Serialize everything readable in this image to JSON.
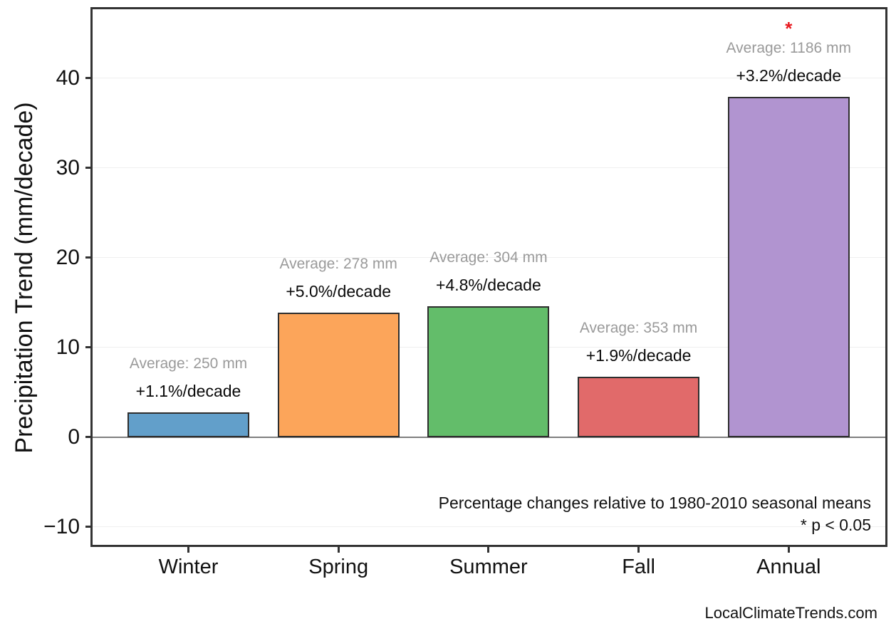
{
  "watermark": "LocalClimateTrends.com",
  "chart_data": {
    "type": "bar",
    "title": "",
    "xlabel": "",
    "ylabel": "Precipitation Trend (mm/decade)",
    "categories": [
      "Winter",
      "Spring",
      "Summer",
      "Fall",
      "Annual"
    ],
    "values": [
      2.75,
      13.9,
      14.6,
      6.7,
      37.9
    ],
    "bar_colors": [
      "#629fca",
      "#fca55a",
      "#63bd6a",
      "#e16a6a",
      "#b194d0"
    ],
    "bar_edge_color": "#2e2e2e",
    "annotations": [
      {
        "average_label": "Average: 250 mm",
        "trend_label": "+1.1%/decade",
        "significant": false
      },
      {
        "average_label": "Average: 278 mm",
        "trend_label": "+5.0%/decade",
        "significant": false
      },
      {
        "average_label": "Average: 304 mm",
        "trend_label": "+4.8%/decade",
        "significant": false
      },
      {
        "average_label": "Average: 353 mm",
        "trend_label": "+1.9%/decade",
        "significant": false
      },
      {
        "average_label": "Average: 1186 mm",
        "trend_label": "+3.2%/decade",
        "significant": true
      }
    ],
    "significance_marker": "*",
    "yticks": [
      {
        "value": -10,
        "label": "−10"
      },
      {
        "value": 0,
        "label": "0"
      },
      {
        "value": 10,
        "label": "10"
      },
      {
        "value": 20,
        "label": "20"
      },
      {
        "value": 30,
        "label": "30"
      },
      {
        "value": 40,
        "label": "40"
      }
    ],
    "ylim": [
      -12,
      47.7
    ],
    "grid": true,
    "legend": null,
    "notes": [
      "Percentage changes relative to 1980-2010 seasonal means",
      "* p < 0.05"
    ],
    "colors": {
      "significance": "#e8191f",
      "average_text": "#9a9a9a",
      "trend_text": "#0a0a0a",
      "gridline": "#efefef",
      "zero_line": "#7f7f7f",
      "spine": "#333333"
    }
  }
}
